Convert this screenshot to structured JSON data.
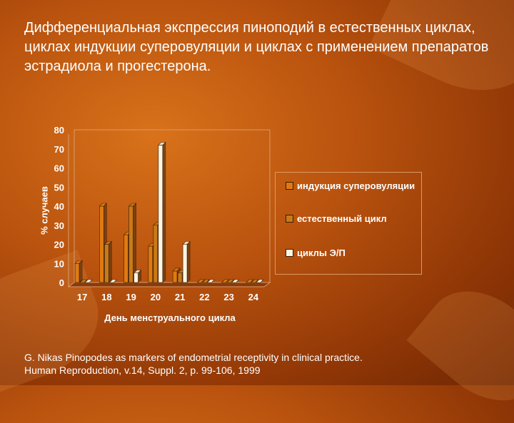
{
  "slide": {
    "title": "Дифференциальная экспрессия пиноподий в естественных циклах, циклах индукции суперовуляции  и циклах с применением препаратов эстрадиола и прогестерона.",
    "source_line1": "G. Nikas Pinopodes as markers of endometrial receptivity in clinical practice.",
    "source_line2": "Human Reproduction, v.14, Suppl. 2, p. 99-106, 1999"
  },
  "chart_data": {
    "type": "bar",
    "xlabel": "День менструального цикла",
    "ylabel": "% случаев",
    "ylim": [
      0,
      80
    ],
    "yticks": [
      0,
      10,
      20,
      30,
      40,
      50,
      60,
      70,
      80
    ],
    "categories": [
      "17",
      "18",
      "19",
      "20",
      "21",
      "22",
      "23",
      "24"
    ],
    "legend_position": "right",
    "grid": false,
    "series": [
      {
        "name": "индукция суперовуляции",
        "color": "#e07a10",
        "values": [
          10,
          40,
          25,
          19,
          6,
          0,
          0,
          0
        ]
      },
      {
        "name": "естественный цикл",
        "color": "#c97a18",
        "values": [
          0,
          20,
          40,
          30,
          5,
          0,
          0,
          0
        ]
      },
      {
        "name": "циклы Э/П",
        "color": "#fbf6e4",
        "values": [
          0,
          0,
          5,
          72,
          20,
          0,
          0,
          0
        ]
      }
    ]
  }
}
